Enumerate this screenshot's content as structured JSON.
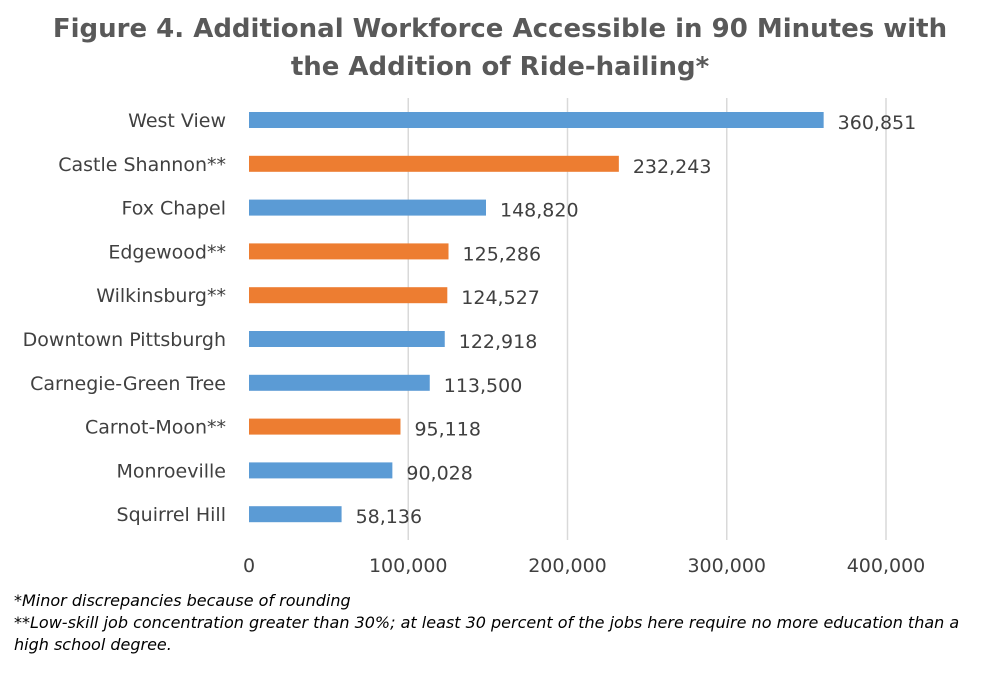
{
  "chart_data": {
    "type": "bar",
    "orientation": "horizontal",
    "title": "Figure 4. Additional Workforce Accessible in 90 Minutes with the Addition of Ride-hailing*",
    "title_lines": [
      "Figure 4. Additional Workforce Accessible in 90 Minutes with",
      "the Addition of Ride-hailing*"
    ],
    "xlabel": "",
    "ylabel": "",
    "xlim": [
      0,
      400000
    ],
    "x_ticks": [
      0,
      100000,
      200000,
      300000,
      400000
    ],
    "x_tick_labels": [
      "0",
      "100,000",
      "200,000",
      "300,000",
      "400,000"
    ],
    "grid": "vertical",
    "categories": [
      "West View",
      "Castle Shannon**",
      "Fox Chapel",
      "Edgewood**",
      "Wilkinsburg**",
      "Downtown Pittsburgh",
      "Carnegie-Green Tree",
      "Carnot-Moon**",
      "Monroeville",
      "Squirrel Hill"
    ],
    "values": [
      360851,
      232243,
      148820,
      125286,
      124527,
      122918,
      113500,
      95118,
      90028,
      58136
    ],
    "value_labels": [
      "360,851",
      "232,243",
      "148,820",
      "125,286",
      "124,527",
      "122,918",
      "113,500",
      "95,118",
      "90,028",
      "58,136"
    ],
    "highlighted": [
      false,
      true,
      false,
      true,
      true,
      false,
      false,
      true,
      false,
      false
    ],
    "colors": {
      "default": "#5b9bd5",
      "highlight": "#ed7d31"
    }
  },
  "footnotes": [
    "*Minor discrepancies because of rounding",
    "**Low-skill job concentration greater than 30%; at least 30 percent of the jobs here require no more education than a high school degree."
  ]
}
